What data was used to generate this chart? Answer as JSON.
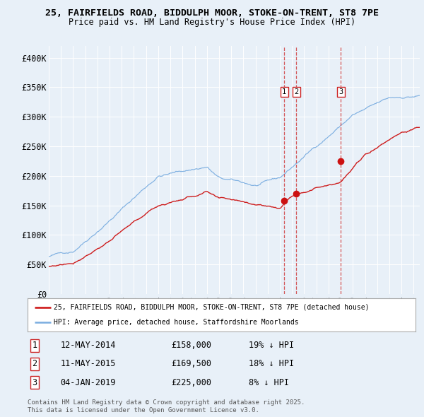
{
  "title_line1": "25, FAIRFIELDS ROAD, BIDDULPH MOOR, STOKE-ON-TRENT, ST8 7PE",
  "title_line2": "Price paid vs. HM Land Registry's House Price Index (HPI)",
  "background_color": "#e8f0f8",
  "plot_bg_color": "#e8f0f8",
  "hpi_color": "#7aade0",
  "price_color": "#cc1111",
  "ylim": [
    0,
    420000
  ],
  "yticks": [
    0,
    50000,
    100000,
    150000,
    200000,
    250000,
    300000,
    350000,
    400000
  ],
  "ytick_labels": [
    "£0",
    "£50K",
    "£100K",
    "£150K",
    "£200K",
    "£250K",
    "£300K",
    "£350K",
    "£400K"
  ],
  "transactions": [
    {
      "num": 1,
      "date": "12-MAY-2014",
      "price": 158000,
      "pct": "19%",
      "x_year": 2014.36
    },
    {
      "num": 2,
      "date": "11-MAY-2015",
      "price": 169500,
      "pct": "18%",
      "x_year": 2015.36
    },
    {
      "num": 3,
      "date": "04-JAN-2019",
      "price": 225000,
      "pct": "8%",
      "x_year": 2019.01
    }
  ],
  "legend_label_red": "25, FAIRFIELDS ROAD, BIDDULPH MOOR, STOKE-ON-TRENT, ST8 7PE (detached house)",
  "legend_label_blue": "HPI: Average price, detached house, Staffordshire Moorlands",
  "footer": "Contains HM Land Registry data © Crown copyright and database right 2025.\nThis data is licensed under the Open Government Licence v3.0.",
  "xmin": 1995.0,
  "xmax": 2025.5
}
